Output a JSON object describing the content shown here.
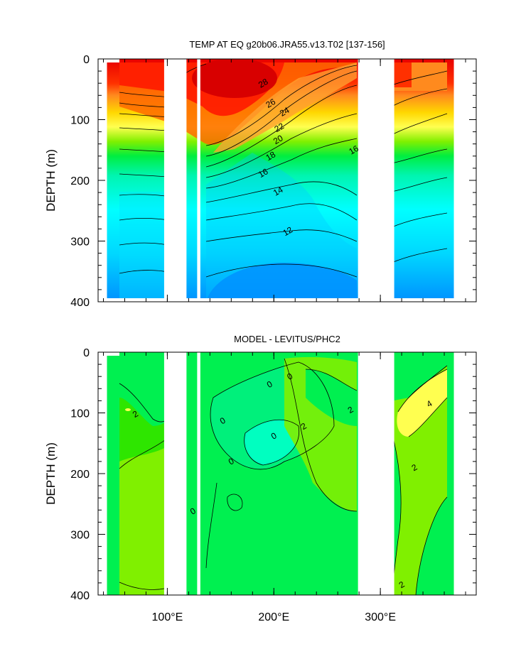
{
  "chart_data": [
    {
      "type": "heatmap",
      "subtype": "filled-contour depth section",
      "title": "TEMP AT EQ g20b06.JRA55.v13.T02 [137-156]",
      "xlabel": "",
      "ylabel": "DEPTH (m)",
      "xlim": [
        35,
        390
      ],
      "ylim": [
        400,
        0
      ],
      "y_inverted": true,
      "xticks": [
        100,
        200,
        300
      ],
      "xtick_labels": [
        "100°E",
        "200°E",
        "300°E"
      ],
      "yticks": [
        0,
        100,
        200,
        300,
        400
      ],
      "ytick_labels": [
        "0",
        "100",
        "200",
        "300",
        "400"
      ],
      "land_gaps_lon": [
        [
          97,
          118
        ],
        [
          128,
          131
        ],
        [
          279,
          313
        ],
        [
          369,
          390
        ]
      ],
      "contour_labels": [
        {
          "text": "28",
          "lon": 190,
          "depth": 40
        },
        {
          "text": "26",
          "lon": 197,
          "depth": 73
        },
        {
          "text": "24",
          "lon": 210,
          "depth": 87
        },
        {
          "text": "22",
          "lon": 205,
          "depth": 113
        },
        {
          "text": "20",
          "lon": 204,
          "depth": 133
        },
        {
          "text": "18",
          "lon": 197,
          "depth": 160
        },
        {
          "text": "16",
          "lon": 275,
          "depth": 150
        },
        {
          "text": "16",
          "lon": 190,
          "depth": 188
        },
        {
          "text": "14",
          "lon": 204,
          "depth": 218
        },
        {
          "text": "12",
          "lon": 213,
          "depth": 284
        }
      ],
      "grid": false
    },
    {
      "type": "heatmap",
      "subtype": "filled-contour depth section",
      "title": "MODEL - LEVITUS/PHC2",
      "xlabel": "",
      "ylabel": "DEPTH (m)",
      "xlim": [
        35,
        390
      ],
      "ylim": [
        400,
        0
      ],
      "y_inverted": true,
      "xticks": [
        100,
        200,
        300
      ],
      "xtick_labels": [
        "100°E",
        "200°E",
        "300°E"
      ],
      "yticks": [
        0,
        100,
        200,
        300,
        400
      ],
      "ytick_labels": [
        "0",
        "100",
        "200",
        "300",
        "400"
      ],
      "land_gaps_lon": [
        [
          97,
          118
        ],
        [
          128,
          131
        ],
        [
          279,
          313
        ],
        [
          369,
          390
        ]
      ],
      "contour_labels": [
        {
          "text": "2",
          "lon": 70,
          "depth": 102
        },
        {
          "text": "0",
          "lon": 196,
          "depth": 53
        },
        {
          "text": "0",
          "lon": 215,
          "depth": 40
        },
        {
          "text": "0",
          "lon": 152,
          "depth": 113
        },
        {
          "text": "0",
          "lon": 200,
          "depth": 138
        },
        {
          "text": "0",
          "lon": 160,
          "depth": 180
        },
        {
          "text": "2",
          "lon": 228,
          "depth": 122
        },
        {
          "text": "2",
          "lon": 272,
          "depth": 95
        },
        {
          "text": "4",
          "lon": 346,
          "depth": 85
        },
        {
          "text": "2",
          "lon": 332,
          "depth": 190
        },
        {
          "text": "0",
          "lon": 124,
          "depth": 262
        },
        {
          "text": "2",
          "lon": 320,
          "depth": 383
        }
      ],
      "grid": false
    }
  ]
}
